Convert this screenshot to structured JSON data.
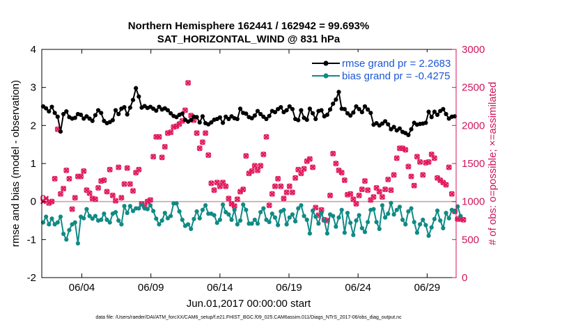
{
  "chart_data": {
    "type": "line",
    "title": "Northern Hemisphere 162441 / 162942 = 99.693%",
    "subtitle": "SAT_HORIZONTAL_WIND @ 831 hPa",
    "xlabel": "Jun.01,2017 00:00:00 start",
    "ylabel_left": "rmse and bias (model - observation)",
    "ylabel_right": "# of obs: o=possible; ×=assimilated",
    "footer": "data file: /Users/raeder/DAI/ATM_forcXX/CAM6_setup/f.e21.FHIST_BGC.f09_025.CAM6assim.011/Diags_NTrS_2017-06/obs_diag_output.nc",
    "x_ticks": [
      {
        "day": 4,
        "label": "06/04"
      },
      {
        "day": 9,
        "label": "06/09"
      },
      {
        "day": 14,
        "label": "06/14"
      },
      {
        "day": 19,
        "label": "06/19"
      },
      {
        "day": 24,
        "label": "06/24"
      },
      {
        "day": 29,
        "label": "06/29"
      }
    ],
    "x_range_days": [
      1.1,
      31.1
    ],
    "y_left_range": [
      -2,
      4
    ],
    "y_left_ticks": [
      -2,
      -1,
      0,
      1,
      2,
      3,
      4
    ],
    "y_right_range": [
      0,
      3000
    ],
    "y_right_ticks": [
      0,
      500,
      1000,
      1500,
      2000,
      2500,
      3000
    ],
    "legend_position": "top-right",
    "series": [
      {
        "name": "rmse grand pr = 2.2683",
        "color": "#000000",
        "axis": "left",
        "values": [
          2.5,
          2.45,
          2.37,
          2.49,
          2.33,
          2.23,
          1.84,
          2.3,
          2.37,
          2.22,
          2.18,
          2.2,
          2.3,
          2.28,
          2.18,
          2.24,
          2.18,
          2.12,
          2.27,
          2.4,
          2.33,
          2.12,
          2.06,
          2.09,
          2.14,
          2.4,
          2.3,
          2.44,
          2.48,
          2.29,
          2.47,
          2.67,
          2.98,
          2.76,
          2.47,
          2.51,
          2.46,
          2.49,
          2.44,
          2.39,
          2.49,
          2.42,
          2.45,
          2.4,
          2.32,
          2.25,
          2.22,
          2.28,
          2.31,
          2.15,
          2.1,
          2.14,
          2.23,
          2.22,
          2.08,
          2.24,
          2.06,
          2.03,
          2.08,
          2.15,
          2.17,
          2.21,
          2.07,
          2.23,
          2.17,
          2.24,
          2.19,
          2.17,
          2.44,
          2.33,
          2.31,
          2.22,
          2.19,
          2.26,
          2.38,
          2.3,
          2.23,
          2.17,
          2.25,
          2.38,
          2.35,
          2.43,
          2.48,
          2.35,
          2.4,
          2.5,
          2.43,
          2.17,
          2.14,
          2.4,
          2.2,
          2.15,
          2.44,
          2.32,
          2.17,
          2.38,
          2.4,
          2.24,
          2.28,
          2.42,
          2.57,
          2.68,
          2.88,
          2.44,
          2.43,
          2.32,
          2.26,
          2.34,
          2.5,
          2.43,
          2.35,
          2.5,
          2.42,
          2.33,
          2.02,
          2.06,
          2.0,
          2.05,
          2.11,
          2.03,
          1.9,
          1.96,
          1.87,
          1.92,
          1.83,
          1.8,
          1.75,
          1.9,
          2.07,
          2.02,
          2.04,
          2.05,
          2.07,
          2.36,
          2.22,
          2.36,
          2.28,
          2.38,
          2.43,
          2.3,
          2.18,
          2.23,
          2.24
        ]
      },
      {
        "name": "bias grand pr = -0.4275",
        "color": "#0f8a85",
        "axis": "left",
        "values": [
          -0.55,
          -0.4,
          -0.6,
          -0.45,
          -0.6,
          -0.55,
          -0.4,
          -0.85,
          -1.0,
          -0.75,
          -0.6,
          -0.55,
          -1.1,
          -0.4,
          -0.44,
          -0.2,
          -0.38,
          -0.45,
          -0.38,
          -0.5,
          -0.48,
          -0.32,
          -0.48,
          -0.55,
          -0.32,
          -0.28,
          -0.5,
          -0.6,
          -0.12,
          -0.3,
          -0.12,
          -0.25,
          -0.18,
          -0.18,
          -0.08,
          -0.18,
          -0.2,
          -0.1,
          -0.25,
          -0.45,
          -0.6,
          -0.5,
          -0.3,
          -0.44,
          -0.38,
          -0.05,
          -0.05,
          -0.26,
          -0.48,
          -0.64,
          -0.6,
          -0.72,
          -0.46,
          -0.26,
          -0.44,
          -0.22,
          -0.1,
          -0.32,
          -0.32,
          -0.36,
          -0.56,
          -0.48,
          -0.08,
          -0.28,
          -0.34,
          -0.48,
          -0.22,
          -0.6,
          -0.5,
          -0.08,
          -0.22,
          -0.58,
          -0.58,
          -0.48,
          -0.58,
          -0.28,
          -0.18,
          -0.48,
          -0.54,
          -0.32,
          -0.42,
          -0.62,
          -0.26,
          -0.22,
          -0.6,
          -0.42,
          -0.34,
          -0.52,
          -0.18,
          -0.1,
          -0.38,
          -0.48,
          -0.84,
          -0.24,
          -0.4,
          -0.58,
          -0.3,
          -0.5,
          -0.84,
          -0.34,
          -0.38,
          -0.66,
          -0.42,
          -0.22,
          -0.82,
          -0.3,
          -0.56,
          -0.88,
          -0.5,
          -0.36,
          -0.7,
          -0.8,
          -0.54,
          -0.22,
          -0.2,
          -0.54,
          -0.72,
          -0.1,
          -0.42,
          -0.32,
          -0.04,
          -0.34,
          -0.22,
          -0.14,
          -0.48,
          -0.6,
          -0.26,
          -0.18,
          -0.54,
          -0.82,
          -0.6,
          -0.48,
          -0.62,
          -0.9,
          -0.68,
          -0.46,
          -0.24,
          -0.5,
          -0.7,
          -0.3,
          -0.44,
          -0.22,
          -0.26,
          -0.13,
          -0.38
        ]
      },
      {
        "name": "possible",
        "color": "#e0185c",
        "axis": "right",
        "values": [
          1050,
          1020,
          980,
          1000,
          1300,
          1950,
          1100,
          1170,
          1410,
          1300,
          900,
          1050,
          1330,
          1330,
          1400,
          1150,
          1110,
          1040,
          1030,
          1180,
          1270,
          1280,
          1130,
          1420,
          1080,
          1010,
          1450,
          1050,
          1230,
          1440,
          1230,
          1140,
          1380,
          1420,
          970,
          940,
          1000,
          1020,
          1590,
          1850,
          1850,
          1580,
          1720,
          1900,
          1910,
          1980,
          1990,
          2020,
          2060,
          2200,
          2560,
          2130,
          2070,
          1900,
          1700,
          1780,
          1900,
          1610,
          1240,
          1150,
          1250,
          1200,
          1250,
          1200,
          1040,
          970,
          940,
          1030,
          1130,
          1160,
          1600,
          1370,
          1400,
          1470,
          1410,
          1470,
          1620,
          1850,
          950,
          1100,
          1200,
          1300,
          1200,
          1040,
          1120,
          1200,
          1120,
          1310,
          1420,
          1370,
          1430,
          1530,
          1560,
          1450,
          920,
          820,
          890,
          760,
          750,
          1080,
          1630,
          1500,
          1410,
          1380,
          1280,
          1090,
          1100,
          1030,
          970,
          1080,
          1160,
          1270,
          1150,
          1020,
          1060,
          1180,
          1130,
          1060,
          1160,
          1290,
          1150,
          1350,
          1570,
          1700,
          1700,
          1680,
          1460,
          1330,
          1210,
          1590,
          1520,
          1350,
          1510,
          1520,
          1620,
          1570,
          1310,
          1280,
          1250,
          1220,
          1450,
          1100,
          870,
          770,
          770,
          760
        ]
      },
      {
        "name": "assimilated",
        "color": "#e0185c",
        "axis": "right",
        "values": [
          1000,
          1040,
          980,
          1000,
          1300,
          1950,
          1100,
          1170,
          1410,
          1300,
          900,
          1050,
          1330,
          1330,
          1400,
          1150,
          1110,
          1040,
          1030,
          1180,
          1270,
          1280,
          1130,
          1420,
          1080,
          1010,
          1450,
          1050,
          1230,
          1440,
          1230,
          1140,
          1380,
          1420,
          970,
          940,
          1000,
          1020,
          1590,
          1850,
          1850,
          1580,
          1720,
          1900,
          1910,
          1980,
          1990,
          2020,
          2060,
          2200,
          2560,
          2130,
          2070,
          1900,
          1700,
          1780,
          1900,
          1610,
          1240,
          1150,
          1250,
          1200,
          1250,
          1200,
          1040,
          970,
          940,
          1030,
          1130,
          1160,
          1600,
          1370,
          1400,
          1470,
          1410,
          1470,
          1620,
          1850,
          950,
          1100,
          1200,
          1300,
          1200,
          1040,
          1120,
          1200,
          1120,
          1310,
          1420,
          1370,
          1430,
          1530,
          1560,
          1450,
          920,
          820,
          890,
          760,
          750,
          1080,
          1630,
          1500,
          1410,
          1380,
          1280,
          1090,
          1100,
          1030,
          970,
          1080,
          1160,
          1270,
          1150,
          1020,
          1060,
          1180,
          1130,
          1060,
          1160,
          1290,
          1150,
          1350,
          1570,
          1700,
          1700,
          1680,
          1460,
          1330,
          1210,
          1590,
          1520,
          1350,
          1510,
          1520,
          1620,
          1570,
          1310,
          1280,
          1250,
          1220,
          1450,
          1100,
          870,
          770,
          770,
          760
        ]
      }
    ]
  }
}
